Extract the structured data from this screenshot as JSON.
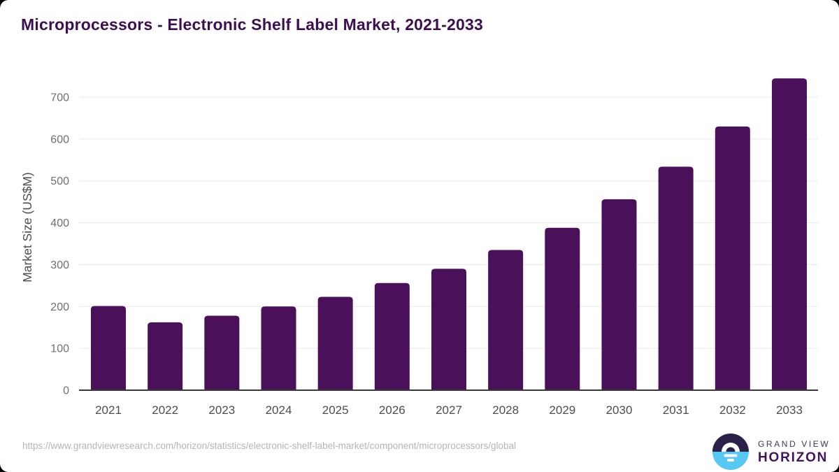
{
  "header": {
    "title": "Microprocessors - Electronic Shelf Label Market, 2021-2033"
  },
  "chart_data": {
    "type": "bar",
    "title": "Microprocessors - Electronic Shelf Label Market, 2021-2033",
    "categories": [
      "2021",
      "2022",
      "2023",
      "2024",
      "2025",
      "2026",
      "2027",
      "2028",
      "2029",
      "2030",
      "2031",
      "2032",
      "2033"
    ],
    "values": [
      201,
      162,
      178,
      200,
      223,
      256,
      290,
      335,
      388,
      456,
      534,
      630,
      745
    ],
    "xlabel": "",
    "ylabel": "Market Size (US$M)",
    "ylim": [
      0,
      750
    ],
    "yticks": [
      0,
      100,
      200,
      300,
      400,
      500,
      600,
      700
    ],
    "grid": true,
    "legend": false,
    "bar_color": "#4a105a"
  },
  "footer": {
    "source_url": "https://www.grandviewresearch.com/horizon/statistics/electronic-shelf-label-market/component/microprocessors/global",
    "logo": {
      "brand_top": "GRAND VIEW",
      "brand_bottom": "HORIZON"
    }
  },
  "colors": {
    "title": "#3c0e52",
    "bar": "#4a105a",
    "gridline": "#eaeaea",
    "axis_line": "#3a3a3a",
    "y_tick_text": "#6f6f6f",
    "x_tick_text": "#4d4d4d",
    "axis_label_text": "#4d4d4d",
    "url_text": "#b4b4b4",
    "logo_dark": "#2b2148",
    "logo_blue": "#57c7f3",
    "brand_purple": "#42145f"
  }
}
